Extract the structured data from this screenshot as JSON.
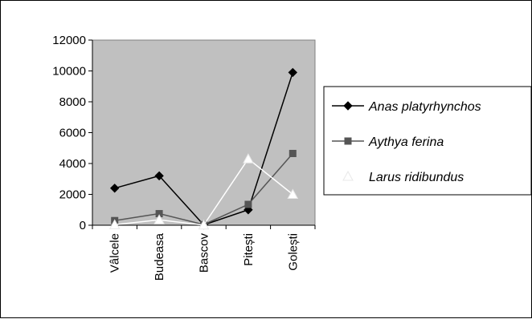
{
  "chart_data": {
    "type": "line",
    "categories": [
      "Vâlcele",
      "Budeasa",
      "Bascov",
      "Pitești",
      "Golești"
    ],
    "series": [
      {
        "name": "Anas platyrhynchos",
        "values": [
          2400,
          3200,
          20,
          1000,
          9900
        ],
        "color": "#000000",
        "marker": "diamond"
      },
      {
        "name": "Aythya ferina",
        "values": [
          300,
          750,
          40,
          1350,
          4650
        ],
        "color": "#555555",
        "marker": "square"
      },
      {
        "name": "Larus ridibundus",
        "values": [
          30,
          350,
          10,
          4300,
          2000
        ],
        "color": "#ffffff",
        "marker": "triangle"
      }
    ],
    "yticks": [
      0,
      2000,
      4000,
      6000,
      8000,
      10000,
      12000
    ],
    "ylim": [
      0,
      12000
    ],
    "plot_background": "#c0c0c0",
    "legend_position": "right",
    "grid": false
  }
}
